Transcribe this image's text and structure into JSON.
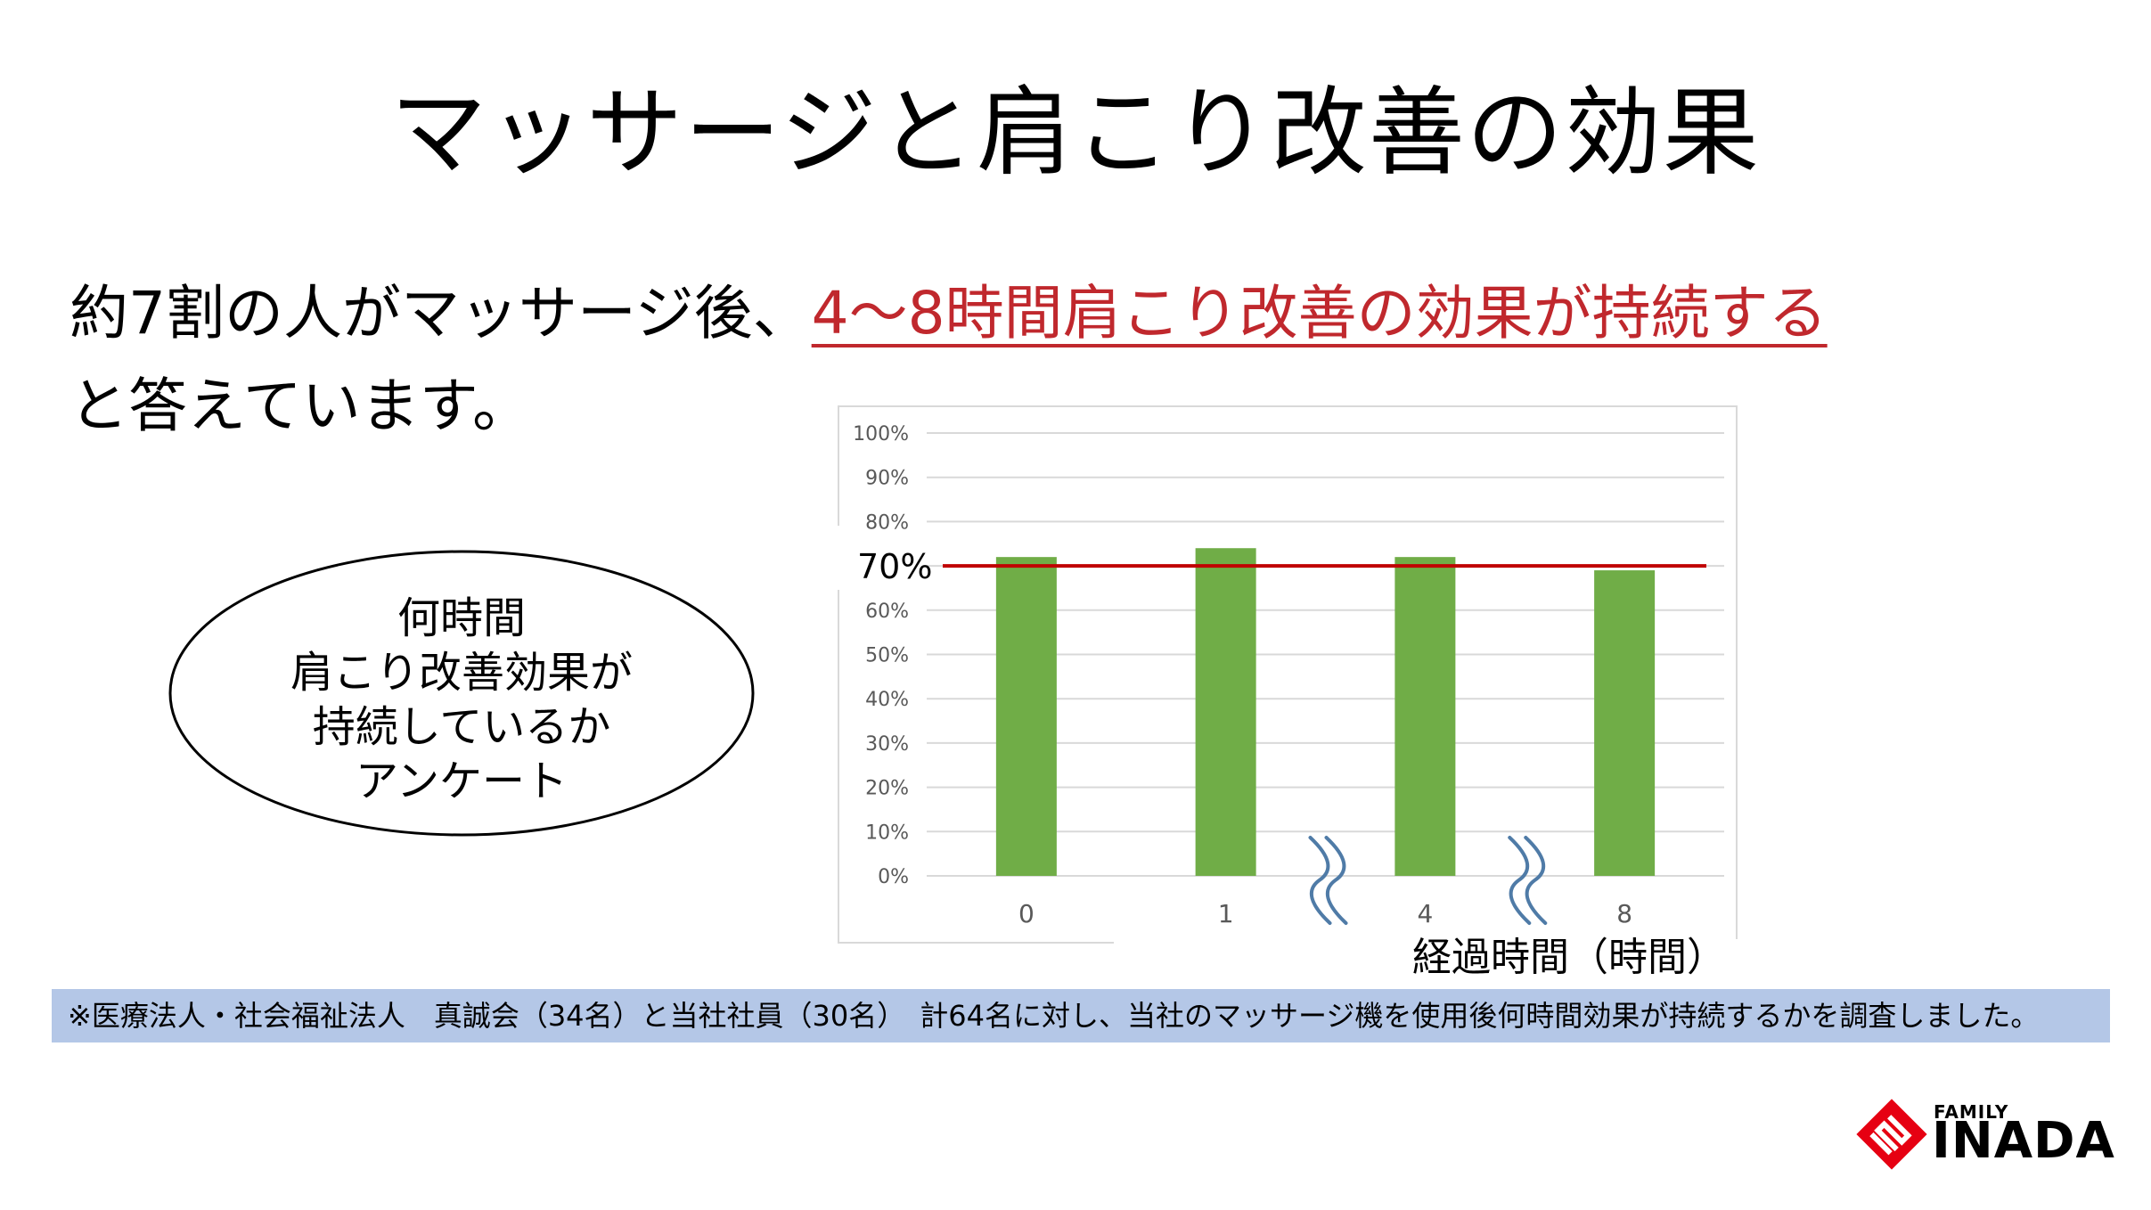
{
  "title": "マッサージと肩こり改善の効果",
  "lead": {
    "prefix": "約7割の人がマッサージ後、",
    "highlight": "4～8時間肩こり改善の効果が持続する",
    "line2": "と答えています。"
  },
  "callout": {
    "lines": [
      "何時間",
      "肩こり改善効果が",
      "持続しているか",
      "アンケート"
    ]
  },
  "chart_data": {
    "type": "bar",
    "categories": [
      "0",
      "1",
      "4",
      "8"
    ],
    "values": [
      72,
      74,
      72,
      69
    ],
    "ylim": [
      0,
      100
    ],
    "yticks": [
      "0%",
      "10%",
      "20%",
      "30%",
      "40%",
      "50%",
      "60%",
      "70%",
      "80%",
      "90%",
      "100%"
    ],
    "xlabel": "経過時間（時間）",
    "reference_line": {
      "value": 70,
      "label": "70%",
      "color": "#c00000"
    },
    "bar_color": "#70ad47",
    "grid": true,
    "axis_break_marks": [
      "between 1 and 4",
      "between 4 and 8"
    ],
    "break_color": "#4f7ba7"
  },
  "footnote": "※医療法人・社会福祉法人　真誠会（34名）と当社社員（30名）　計64名に対し、当社のマッサージ機を使用後何時間効果が持続するかを調査しました。",
  "logo": {
    "small": "FAMILY",
    "main": "INADA",
    "color": "#e60012"
  }
}
